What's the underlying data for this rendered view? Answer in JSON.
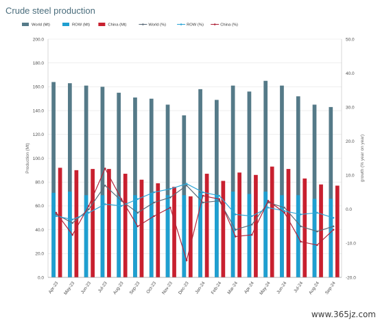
{
  "chart_data": {
    "type": "bar",
    "title": "Crude steel production",
    "ylabel": "Production (Mt)",
    "y2label": "growth (% year on year)",
    "ylim": [
      0,
      200
    ],
    "y2lim": [
      -20,
      50
    ],
    "yticks": [
      "0.0",
      "20.0",
      "40.0",
      "60.0",
      "80.0",
      "100.0",
      "120.0",
      "140.0",
      "160.0",
      "180.0",
      "200.0"
    ],
    "y2ticks": [
      "-20.0",
      "-10.0",
      "0.0",
      "10.0",
      "20.0",
      "30.0",
      "40.0",
      "50.0"
    ],
    "categories": [
      "Apr-23",
      "May-23",
      "Jun-23",
      "Jul-23",
      "Aug-23",
      "Sep-23",
      "Oct-23",
      "Nov-23",
      "Dec-23",
      "Jan-24",
      "Feb-24",
      "Mar-24",
      "Apr-24",
      "May-24",
      "Jun-24",
      "Jul-24",
      "Aug-24",
      "Sep-24"
    ],
    "series": [
      {
        "name": "World (Mt)",
        "kind": "bar",
        "color": "#557a88",
        "values": [
          164,
          163,
          161,
          160,
          155,
          151,
          150,
          145,
          136,
          158,
          149,
          161,
          156,
          165,
          161,
          152,
          145,
          143
        ]
      },
      {
        "name": "ROW (Mt)",
        "kind": "bar",
        "color": "#1f9fd0",
        "values": [
          71,
          72,
          69,
          69,
          68,
          69,
          71,
          69,
          69,
          71,
          69,
          72,
          70,
          72,
          69,
          69,
          66,
          66
        ]
      },
      {
        "name": "China (Mt)",
        "kind": "bar",
        "color": "#c8202f",
        "values": [
          92,
          90,
          91,
          91,
          87,
          82,
          79,
          76,
          68,
          87,
          81,
          88,
          86,
          93,
          91,
          83,
          78,
          77
        ]
      },
      {
        "name": "World (%)",
        "kind": "line",
        "color": "#5b6b78",
        "values": [
          -1.5,
          -4.0,
          0.0,
          7.0,
          2.5,
          -1.0,
          2.0,
          3.5,
          7.0,
          2.0,
          2.5,
          -6.0,
          -4.5,
          2.0,
          0.5,
          -5.0,
          -6.5,
          -5.0
        ]
      },
      {
        "name": "ROW (%)",
        "kind": "line",
        "color": "#2ea6d6",
        "values": [
          -2.0,
          -3.0,
          -1.0,
          1.5,
          1.0,
          3.0,
          5.0,
          6.0,
          7.5,
          5.0,
          4.0,
          -1.5,
          -2.0,
          0.5,
          -0.5,
          -1.5,
          -1.0,
          -2.5
        ]
      },
      {
        "name": "China (%)",
        "kind": "line",
        "color": "#b0253a",
        "values": [
          -1.0,
          -7.5,
          1.0,
          12.0,
          3.0,
          -5.0,
          -2.0,
          0.5,
          -15.0,
          4.0,
          3.0,
          -8.0,
          -7.5,
          2.5,
          -1.0,
          -9.5,
          -10.5,
          -6.0
        ]
      }
    ]
  },
  "watermark": "www.365jz.com"
}
